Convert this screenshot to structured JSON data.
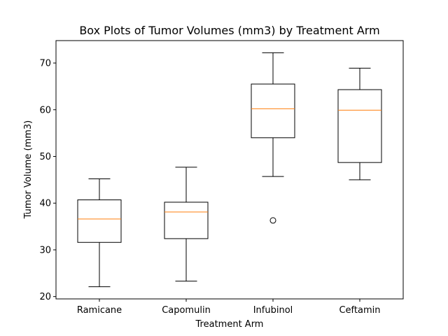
{
  "chart_data": {
    "type": "box",
    "title": "Box Plots of Tumor Volumes (mm3) by Treatment Arm",
    "xlabel": "Treatment Arm",
    "ylabel": "Tumor Volume (mm3)",
    "ylim": [
      19.5,
      74.8
    ],
    "yticks": [
      20,
      30,
      40,
      50,
      60,
      70
    ],
    "grid": false,
    "categories": [
      "Ramicane",
      "Capomulin",
      "Infubinol",
      "Ceftamin"
    ],
    "boxes": [
      {
        "whisker_low": 22.1,
        "q1": 31.6,
        "median": 36.6,
        "q3": 40.7,
        "whisker_high": 45.2,
        "outliers": []
      },
      {
        "whisker_low": 23.3,
        "q1": 32.4,
        "median": 38.1,
        "q3": 40.2,
        "whisker_high": 47.7,
        "outliers": []
      },
      {
        "whisker_low": 45.7,
        "q1": 54.0,
        "median": 60.2,
        "q3": 65.5,
        "whisker_high": 72.2,
        "outliers": [
          36.3
        ]
      },
      {
        "whisker_low": 45.0,
        "q1": 48.7,
        "median": 59.9,
        "q3": 64.3,
        "whisker_high": 68.9,
        "outliers": []
      }
    ],
    "colors": {
      "box": "#000000",
      "median": "#ff7f0e",
      "outlier": "#000000"
    }
  }
}
